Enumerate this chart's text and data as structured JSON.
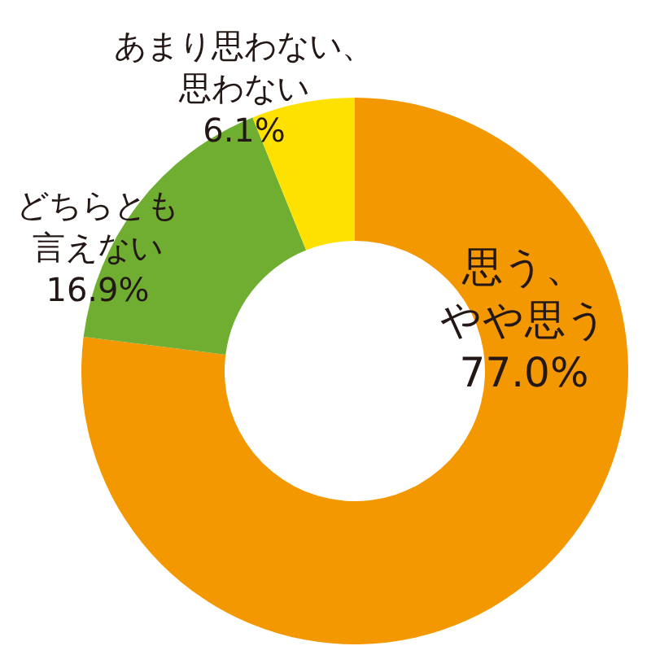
{
  "chart_data": {
    "type": "donut",
    "categories": [
      "思う、やや思う",
      "どちらとも言えない",
      "あまり思わない、思わない"
    ],
    "values": [
      77.0,
      16.9,
      6.1
    ],
    "value_labels": [
      "77.0%",
      "16.9%",
      "6.1%"
    ],
    "colors": [
      "#f39800",
      "#6fae31",
      "#ffe100"
    ]
  }
}
